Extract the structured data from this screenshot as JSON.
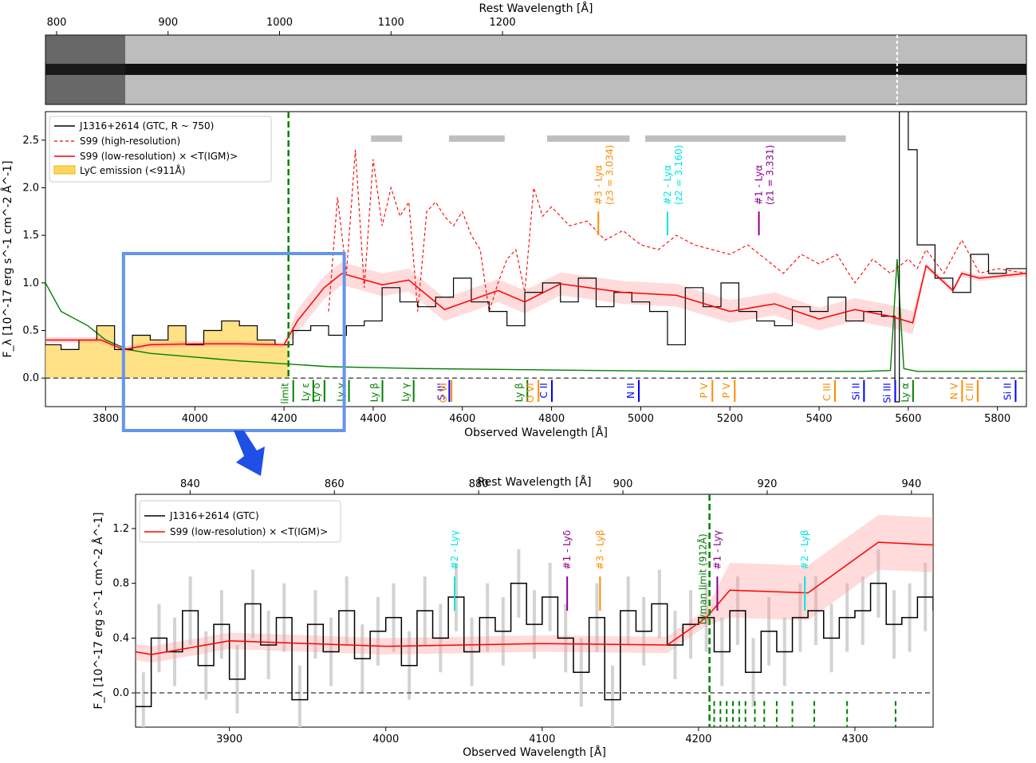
{
  "chart_data": [
    {
      "type": "image",
      "panel": "2d-spectrum",
      "xlabel_top": "Rest Wavelength [Å]",
      "top_ticks": [
        800,
        900,
        1000,
        1100,
        1200
      ],
      "colormap": "grayscale",
      "description_marks": [
        "dashed lines at sky-line residual near 5577 Å observed"
      ]
    },
    {
      "type": "line",
      "panel": "full-spectrum",
      "xlabel": "Observed Wavelength [Å]",
      "xlabel_top": "Rest Wavelength [Å]",
      "ylabel": "F_λ [10^-17 erg s^-1 cm^-2 Å^-1]",
      "xlim": [
        3665,
        5865
      ],
      "ylim": [
        -0.3,
        2.8
      ],
      "x_ticks": [
        3800,
        4000,
        4200,
        4400,
        4600,
        4800,
        5000,
        5200,
        5400,
        5600,
        5800
      ],
      "y_ticks": [
        0.0,
        0.5,
        1.0,
        1.5,
        2.0,
        2.5
      ],
      "top_ticks": [
        800,
        900,
        1000,
        1100,
        1200
      ],
      "legend": {
        "position": "upper-left",
        "entries": [
          {
            "label": "J1316+2614 (GTC, R ~ 750)",
            "style": "solid",
            "color": "#000000"
          },
          {
            "label": "S99 (high-resolution)",
            "style": "dashed",
            "color": "#ff0000"
          },
          {
            "label": "S99 (low-resolution) × <T(IGM)>",
            "style": "solid",
            "color": "#ff0000"
          },
          {
            "label": "LyC emission (<911Å)",
            "style": "patch",
            "color": "#ffd75e"
          }
        ]
      },
      "lyman_limit_x": 4210,
      "series": [
        {
          "name": "S99 (low-resolution) × <T(IGM)>",
          "x": [
            3665,
            3790,
            3840,
            3900,
            4000,
            4100,
            4200,
            4230,
            4290,
            4330,
            4420,
            4480,
            4560,
            4680,
            4740,
            4820,
            4960,
            5080,
            5200,
            5300,
            5400,
            5480,
            5560,
            5610,
            5640,
            5700,
            5720,
            5760,
            5865
          ],
          "y": [
            0.4,
            0.4,
            0.3,
            0.35,
            0.36,
            0.36,
            0.35,
            0.6,
            0.95,
            1.1,
            0.98,
            1.03,
            0.72,
            0.92,
            0.8,
            0.99,
            0.9,
            0.87,
            0.7,
            0.78,
            0.62,
            0.72,
            0.65,
            0.58,
            1.18,
            0.92,
            1.1,
            1.05,
            1.1
          ]
        },
        {
          "name": "S99 (high-resolution)",
          "x": [
            4300,
            4320,
            4340,
            4360,
            4380,
            4400,
            4420,
            4440,
            4460,
            4480,
            4500,
            4520,
            4540,
            4560,
            4580,
            4600,
            4620,
            4640,
            4660,
            4680,
            4700,
            4720,
            4740,
            4760,
            4780,
            4800,
            4840,
            4880,
            4920,
            4960,
            5000,
            5040,
            5080,
            5120,
            5160,
            5200,
            5240,
            5280,
            5320,
            5360,
            5400,
            5440,
            5480,
            5520,
            5560,
            5600,
            5620,
            5640,
            5680,
            5720,
            5760,
            5800,
            5865
          ],
          "y": [
            0.7,
            1.9,
            1.1,
            2.4,
            0.95,
            2.3,
            1.6,
            2.0,
            1.7,
            1.85,
            0.7,
            1.75,
            1.85,
            1.7,
            1.6,
            1.75,
            1.5,
            1.35,
            0.7,
            1.0,
            1.25,
            1.35,
            0.9,
            2.0,
            1.7,
            1.8,
            1.6,
            1.65,
            1.45,
            1.55,
            1.4,
            1.35,
            1.5,
            1.4,
            1.35,
            1.3,
            1.4,
            1.25,
            1.1,
            1.3,
            1.2,
            1.3,
            1.0,
            1.25,
            1.1,
            1.25,
            1.15,
            1.35,
            1.1,
            1.45,
            1.1,
            1.15,
            1.1
          ]
        },
        {
          "name": "J1316+2614 (GTC, R ~ 750)",
          "x": [
            3665,
            3700,
            3740,
            3780,
            3820,
            3860,
            3900,
            3940,
            3980,
            4020,
            4060,
            4100,
            4140,
            4180,
            4220,
            4260,
            4300,
            4340,
            4380,
            4420,
            4460,
            4500,
            4540,
            4580,
            4620,
            4660,
            4700,
            4740,
            4780,
            4820,
            4860,
            4900,
            4940,
            4980,
            5020,
            5060,
            5100,
            5140,
            5180,
            5220,
            5260,
            5300,
            5340,
            5380,
            5420,
            5460,
            5500,
            5540,
            5570,
            5580,
            5600,
            5620,
            5660,
            5700,
            5740,
            5780,
            5820,
            5865
          ],
          "y": [
            0.35,
            0.3,
            0.4,
            0.55,
            0.3,
            0.45,
            0.4,
            0.55,
            0.35,
            0.5,
            0.6,
            0.55,
            0.4,
            0.35,
            0.5,
            0.55,
            0.45,
            0.55,
            0.6,
            0.95,
            0.8,
            0.75,
            0.85,
            1.05,
            0.8,
            0.7,
            0.55,
            0.9,
            1.0,
            0.8,
            1.05,
            0.75,
            0.9,
            0.8,
            0.7,
            0.35,
            0.95,
            0.75,
            1.0,
            0.7,
            0.6,
            0.55,
            0.75,
            0.7,
            0.85,
            0.6,
            0.7,
            0.65,
            -0.25,
            2.8,
            2.4,
            1.4,
            1.05,
            0.9,
            1.3,
            1.1,
            1.15,
            1.05
          ]
        },
        {
          "name": "error",
          "x": [
            3665,
            3700,
            3760,
            3800,
            3850,
            3900,
            4000,
            4100,
            4200,
            4300,
            4400,
            4500,
            4700,
            4900,
            5100,
            5300,
            5500,
            5560,
            5575,
            5590,
            5620,
            5700,
            5865
          ],
          "y": [
            1.0,
            0.7,
            0.55,
            0.4,
            0.3,
            0.26,
            0.22,
            0.18,
            0.15,
            0.12,
            0.11,
            0.1,
            0.09,
            0.08,
            0.07,
            0.07,
            0.07,
            0.08,
            1.25,
            0.1,
            0.07,
            0.07,
            0.07
          ]
        }
      ],
      "grey_bars": [
        [
          4395,
          4465
        ],
        [
          4570,
          4695
        ],
        [
          4790,
          4975
        ],
        [
          5010,
          5460
        ]
      ],
      "annotations": [
        {
          "label": "#3 - Lyα",
          "sublabel": "(z3 = 3.034)",
          "x": 4905,
          "color": "#ff8c00"
        },
        {
          "label": "#2 - Lyα",
          "sublabel": "(z2 = 3.160)",
          "x": 5060,
          "color": "#00e5e5"
        },
        {
          "label": "#1 - Lyα",
          "sublabel": "(z1 = 3.331)",
          "x": 5265,
          "color": "#8b008b"
        }
      ],
      "line_ids": [
        {
          "label": "Ly limit",
          "x": 4210,
          "color": "#008000"
        },
        {
          "label": "Ly ε",
          "x": 4255,
          "color": "#008000"
        },
        {
          "label": "Ly δ",
          "x": 4280,
          "color": "#008000"
        },
        {
          "label": "Ly γ",
          "x": 4335,
          "color": "#008000"
        },
        {
          "label": "Ly β",
          "x": 4410,
          "color": "#008000"
        },
        {
          "label": "Ly γ",
          "x": 4480,
          "color": "#008000"
        },
        {
          "label": "S III",
          "x": 4560,
          "color": "#0000ff"
        },
        {
          "label": "O VI",
          "x": 4565,
          "color": "#ff8c00"
        },
        {
          "label": "Ly β",
          "x": 4735,
          "color": "#008000"
        },
        {
          "label": "O VI",
          "x": 4760,
          "color": "#ff8c00"
        },
        {
          "label": "C II",
          "x": 4790,
          "color": "#0000ff"
        },
        {
          "label": "N II",
          "x": 4985,
          "color": "#0000ff"
        },
        {
          "label": "P V",
          "x": 5150,
          "color": "#ff8c00"
        },
        {
          "label": "P V",
          "x": 5200,
          "color": "#ff8c00"
        },
        {
          "label": "C III",
          "x": 5425,
          "color": "#ff8c00"
        },
        {
          "label": "Si II",
          "x": 5490,
          "color": "#0000ff"
        },
        {
          "label": "Si III",
          "x": 5560,
          "color": "#0000ff"
        },
        {
          "label": "Ly α",
          "x": 5600,
          "color": "#008000"
        },
        {
          "label": "N V",
          "x": 5710,
          "color": "#ff8c00"
        },
        {
          "label": "C III",
          "x": 5745,
          "color": "#ff8c00"
        },
        {
          "label": "Si II",
          "x": 5830,
          "color": "#0000ff"
        }
      ],
      "zoom_box": {
        "x": [
          3840,
          4335
        ],
        "y": [
          -0.3,
          1.3
        ]
      }
    },
    {
      "type": "line",
      "panel": "zoom",
      "xlabel": "Observed Wavelength [Å]",
      "xlabel_top": "Rest Wavelength [Å]",
      "ylabel": "F_λ [10^-17 erg s^-1 cm^-2 Å^-1]",
      "xlim": [
        3840,
        4350
      ],
      "ylim": [
        -0.25,
        1.45
      ],
      "x_ticks": [
        3900,
        4000,
        4100,
        4200,
        4300
      ],
      "y_ticks": [
        0.0,
        0.4,
        0.8,
        1.2
      ],
      "top_ticks": [
        840,
        860,
        880,
        900,
        920,
        940
      ],
      "legend": {
        "position": "upper-left",
        "entries": [
          {
            "label": "J1316+2614 (GTC)",
            "style": "solid",
            "color": "#000000"
          },
          {
            "label": "S99 (low-resolution) × <T(IGM)>",
            "style": "solid",
            "color": "#ff0000"
          }
        ]
      },
      "lyman_limit": {
        "label": "Lyman limit (912Å)",
        "x": 4207,
        "color": "#008000"
      },
      "series": [
        {
          "name": "S99 (low-resolution) × <T(IGM)>",
          "x": [
            3840,
            3850,
            3900,
            4000,
            4100,
            4180,
            4205,
            4220,
            4270,
            4315,
            4350
          ],
          "y": [
            0.3,
            0.28,
            0.38,
            0.34,
            0.36,
            0.35,
            0.55,
            0.75,
            0.73,
            1.1,
            1.08
          ]
        },
        {
          "name": "J1316+2614 (GTC)",
          "x": [
            3840,
            3850,
            3860,
            3870,
            3880,
            3890,
            3900,
            3910,
            3920,
            3930,
            3940,
            3950,
            3960,
            3970,
            3980,
            3990,
            4000,
            4010,
            4020,
            4030,
            4040,
            4050,
            4060,
            4070,
            4080,
            4090,
            4100,
            4110,
            4120,
            4130,
            4140,
            4150,
            4160,
            4170,
            4180,
            4190,
            4200,
            4210,
            4220,
            4230,
            4240,
            4250,
            4260,
            4270,
            4280,
            4290,
            4300,
            4310,
            4320,
            4330,
            4340,
            4350
          ],
          "y": [
            -0.1,
            0.4,
            0.3,
            0.6,
            0.2,
            0.5,
            0.1,
            0.65,
            0.35,
            0.55,
            -0.05,
            0.5,
            0.3,
            0.6,
            0.25,
            0.45,
            0.55,
            0.2,
            0.6,
            0.4,
            0.7,
            0.3,
            0.55,
            0.45,
            0.8,
            0.5,
            0.7,
            0.4,
            0.15,
            0.55,
            -0.05,
            0.6,
            0.45,
            0.65,
            0.35,
            0.5,
            0.55,
            0.3,
            0.6,
            0.15,
            0.45,
            0.3,
            0.55,
            0.6,
            0.4,
            0.55,
            0.6,
            0.8,
            0.5,
            0.55,
            0.7,
            0.6
          ]
        }
      ],
      "annotations": [
        {
          "label": "#2 - Lyγ",
          "x": 4044,
          "color": "#00e5e5"
        },
        {
          "label": "#1 - Lyδ",
          "x": 4116,
          "color": "#8b008b"
        },
        {
          "label": "#3 - Lyβ",
          "x": 4137,
          "color": "#ff8c00"
        },
        {
          "label": "#1 - Lyγ",
          "x": 4212,
          "color": "#8b008b"
        },
        {
          "label": "#2 - Lyβ",
          "x": 4268,
          "color": "#00e5e5"
        }
      ]
    }
  ]
}
